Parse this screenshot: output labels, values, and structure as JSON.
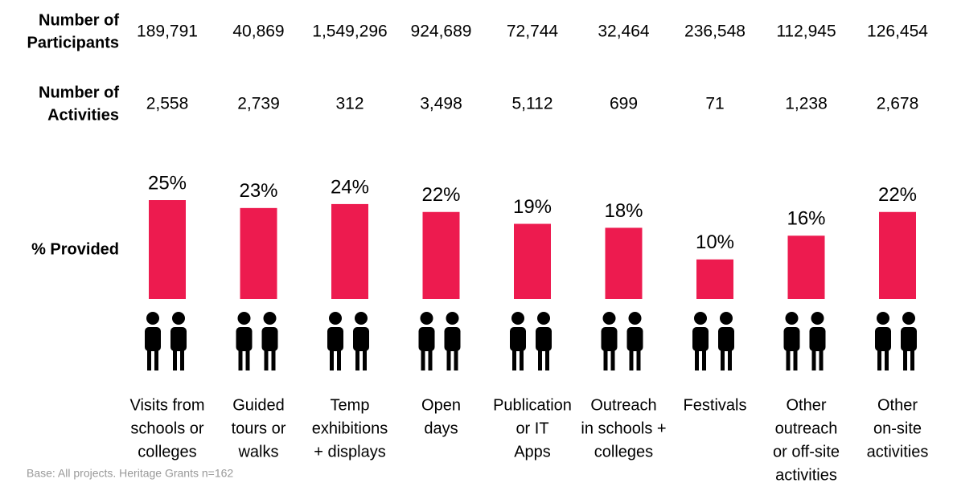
{
  "chart_data": {
    "type": "bar",
    "categories": [
      [
        "Visits from",
        "schools or",
        "colleges"
      ],
      [
        "Guided",
        "tours or",
        "walks"
      ],
      [
        "Temp",
        "exhibitions",
        "+ displays"
      ],
      [
        "Open",
        "days"
      ],
      [
        "Publication",
        "or IT",
        "Apps"
      ],
      [
        "Outreach",
        "in schools +",
        "colleges"
      ],
      [
        "Festivals"
      ],
      [
        "Other",
        "outreach",
        "or off-site",
        "activities"
      ],
      [
        "Other",
        "on-site",
        "activities"
      ]
    ],
    "participants": {
      "label": [
        "Number of",
        "Participants"
      ],
      "values": [
        189791,
        40869,
        1549296,
        924689,
        72744,
        32464,
        236548,
        112945,
        126454
      ],
      "value_labels": [
        "189,791",
        "40,869",
        "1,549,296",
        "924,689",
        "72,744",
        "32,464",
        "236,548",
        "112,945",
        "126,454"
      ]
    },
    "activities": {
      "label": [
        "Number of",
        "Activities"
      ],
      "values": [
        2558,
        2739,
        312,
        3498,
        5112,
        699,
        71,
        1238,
        2678
      ],
      "value_labels": [
        "2,558",
        "2,739",
        "312",
        "3,498",
        "5,112",
        "699",
        "71",
        "1,238",
        "2,678"
      ]
    },
    "values_label": "% Provided",
    "values": [
      25,
      23,
      24,
      22,
      19,
      18,
      10,
      16,
      22
    ],
    "value_labels": [
      "25%",
      "23%",
      "24%",
      "22%",
      "19%",
      "18%",
      "10%",
      "16%",
      "22%"
    ],
    "color": "#ed1b4f",
    "note": "Base: All projects. Heritage Grants n=162"
  }
}
